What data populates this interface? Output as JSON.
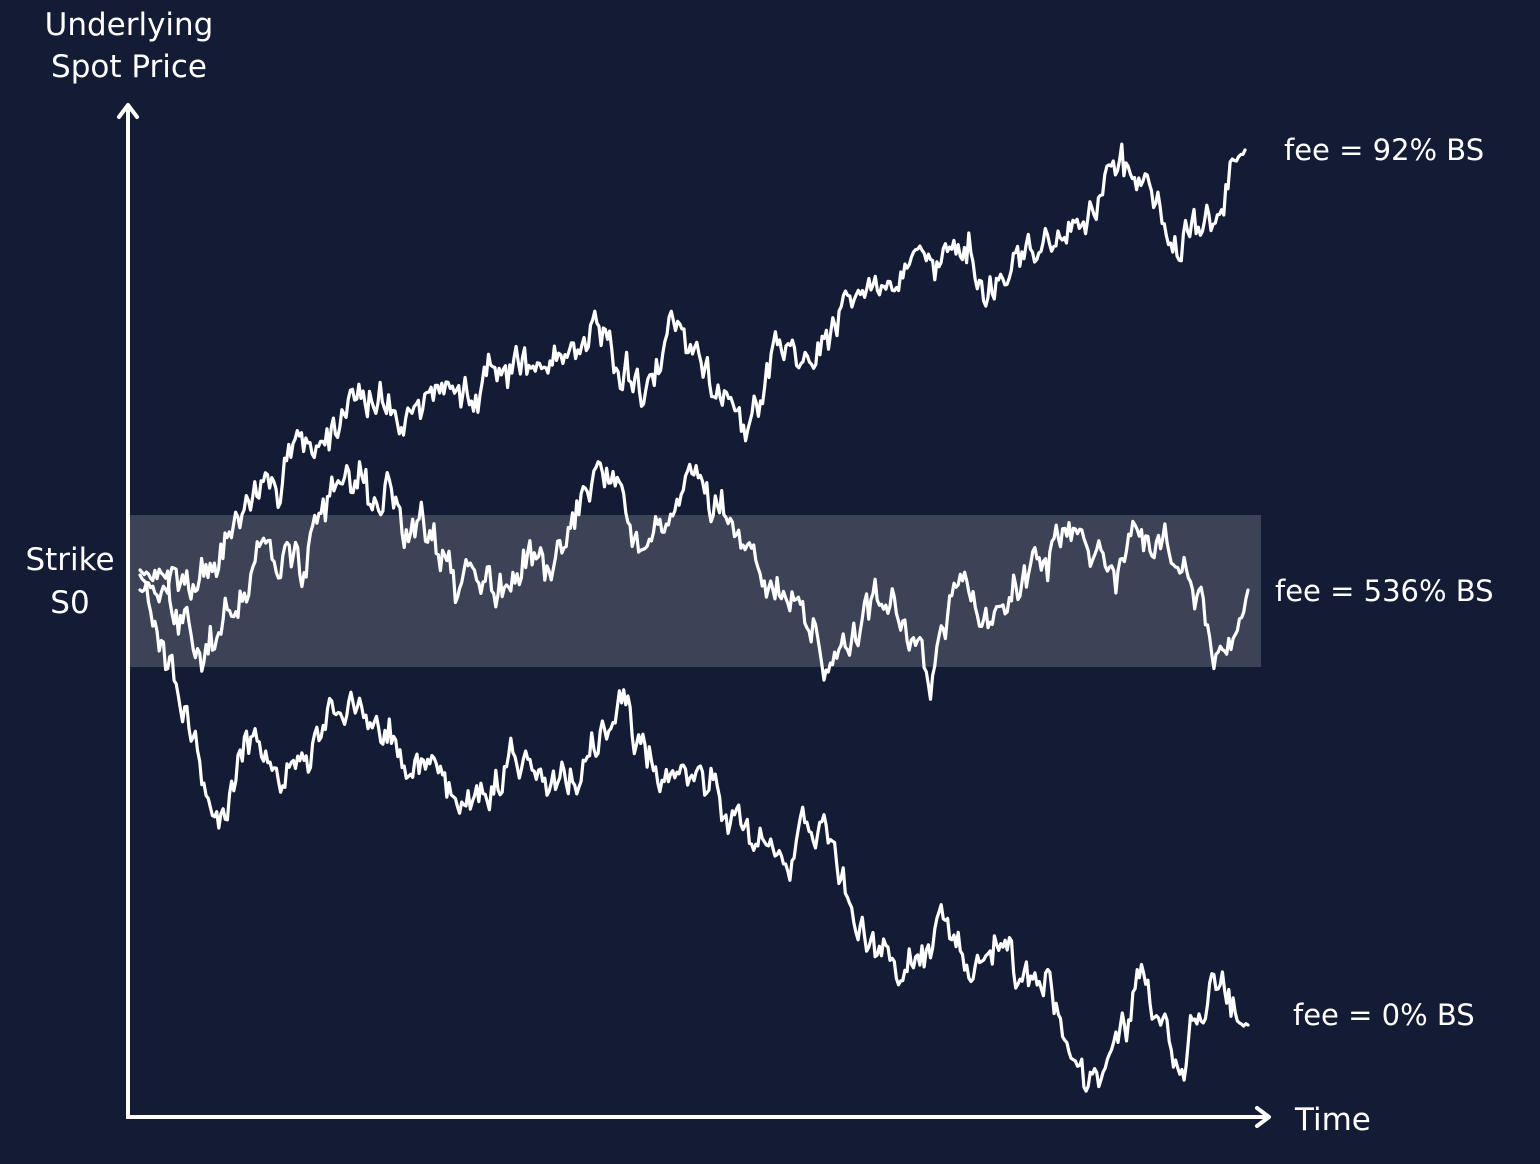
{
  "theme": {
    "background": "#141b34",
    "foreground": "#ffffff",
    "band_fill": "#3d4356"
  },
  "axes": {
    "y_label_line1": "Underlying",
    "y_label_line2": "Spot Price",
    "x_label": "Time",
    "strike_label_line1": "Strike",
    "strike_label_line2": "S0"
  },
  "band": {
    "description_hidden": true
  },
  "paths": [
    {
      "id": "upper",
      "label": "fee = 92% BS"
    },
    {
      "id": "middle",
      "label": "fee = 536% BS"
    },
    {
      "id": "lower",
      "label": "fee = 0% BS"
    }
  ]
}
